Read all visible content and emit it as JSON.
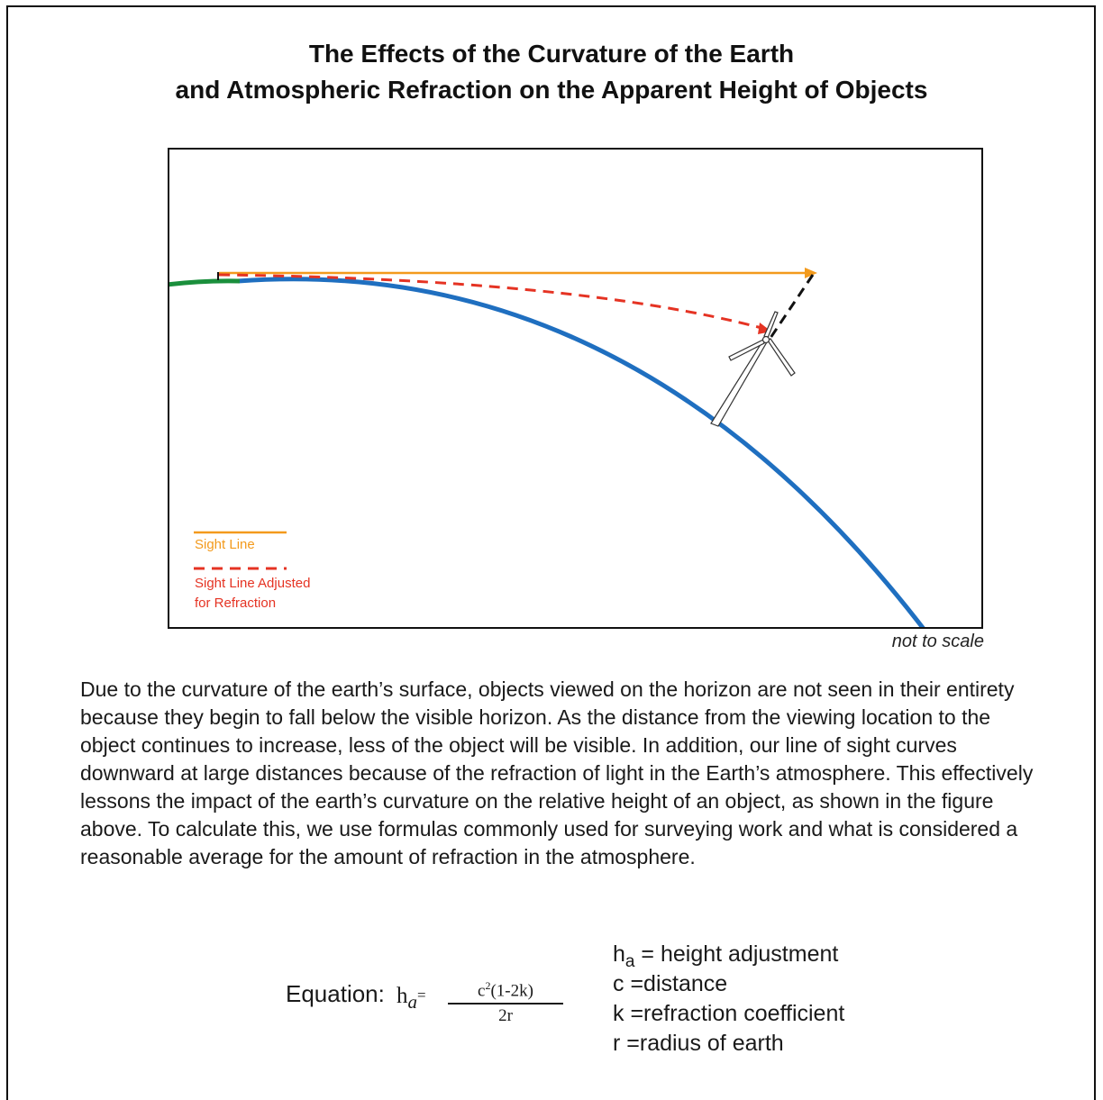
{
  "title": {
    "line1": "The Effects of the Curvature of the Earth",
    "line2": "and Atmospheric Refraction on the Apparent Height of Objects"
  },
  "diagram": {
    "legend": {
      "sight_line": "Sight Line",
      "adjusted_line1": "Sight Line Adjusted",
      "adjusted_line2": "for Refraction"
    },
    "note": "not to scale",
    "colors": {
      "earth": "#1f6fc0",
      "observer_ground": "#1a8f3c",
      "sight_line": "#f39a1c",
      "refracted_line": "#e53323",
      "hidden_portion": "#111111"
    }
  },
  "description": "Due to the curvature of the earth’s surface, objects viewed on the horizon are not seen in their entirety because they begin to fall below the visible horizon. As the distance from the viewing location to the object continues to increase, less of the object will be visible.  In addition, our line of sight curves downward at large distances because of the refraction of light in the Earth’s atmosphere.  This effectively lessons the impact of the earth’s curvature on the relative height of an object, as shown in the figure above.  To calculate this, we use formulas commonly used for surveying work and what is considered a reasonable average for the amount of refraction in the atmosphere.",
  "equation": {
    "label": "Equation:",
    "lhs_var": "h",
    "lhs_sub": "a",
    "equals": "=",
    "numerator_base": "c",
    "numerator_exp": "2",
    "numerator_rest": "(1-2k)",
    "denominator": "2r"
  },
  "variables": {
    "h": {
      "symbol": "h",
      "sub": "a",
      "text": " = height adjustment"
    },
    "c": {
      "text": "c =distance"
    },
    "k": {
      "text": "k =refraction coefficient"
    },
    "r": {
      "text": "r =radius of earth"
    }
  }
}
